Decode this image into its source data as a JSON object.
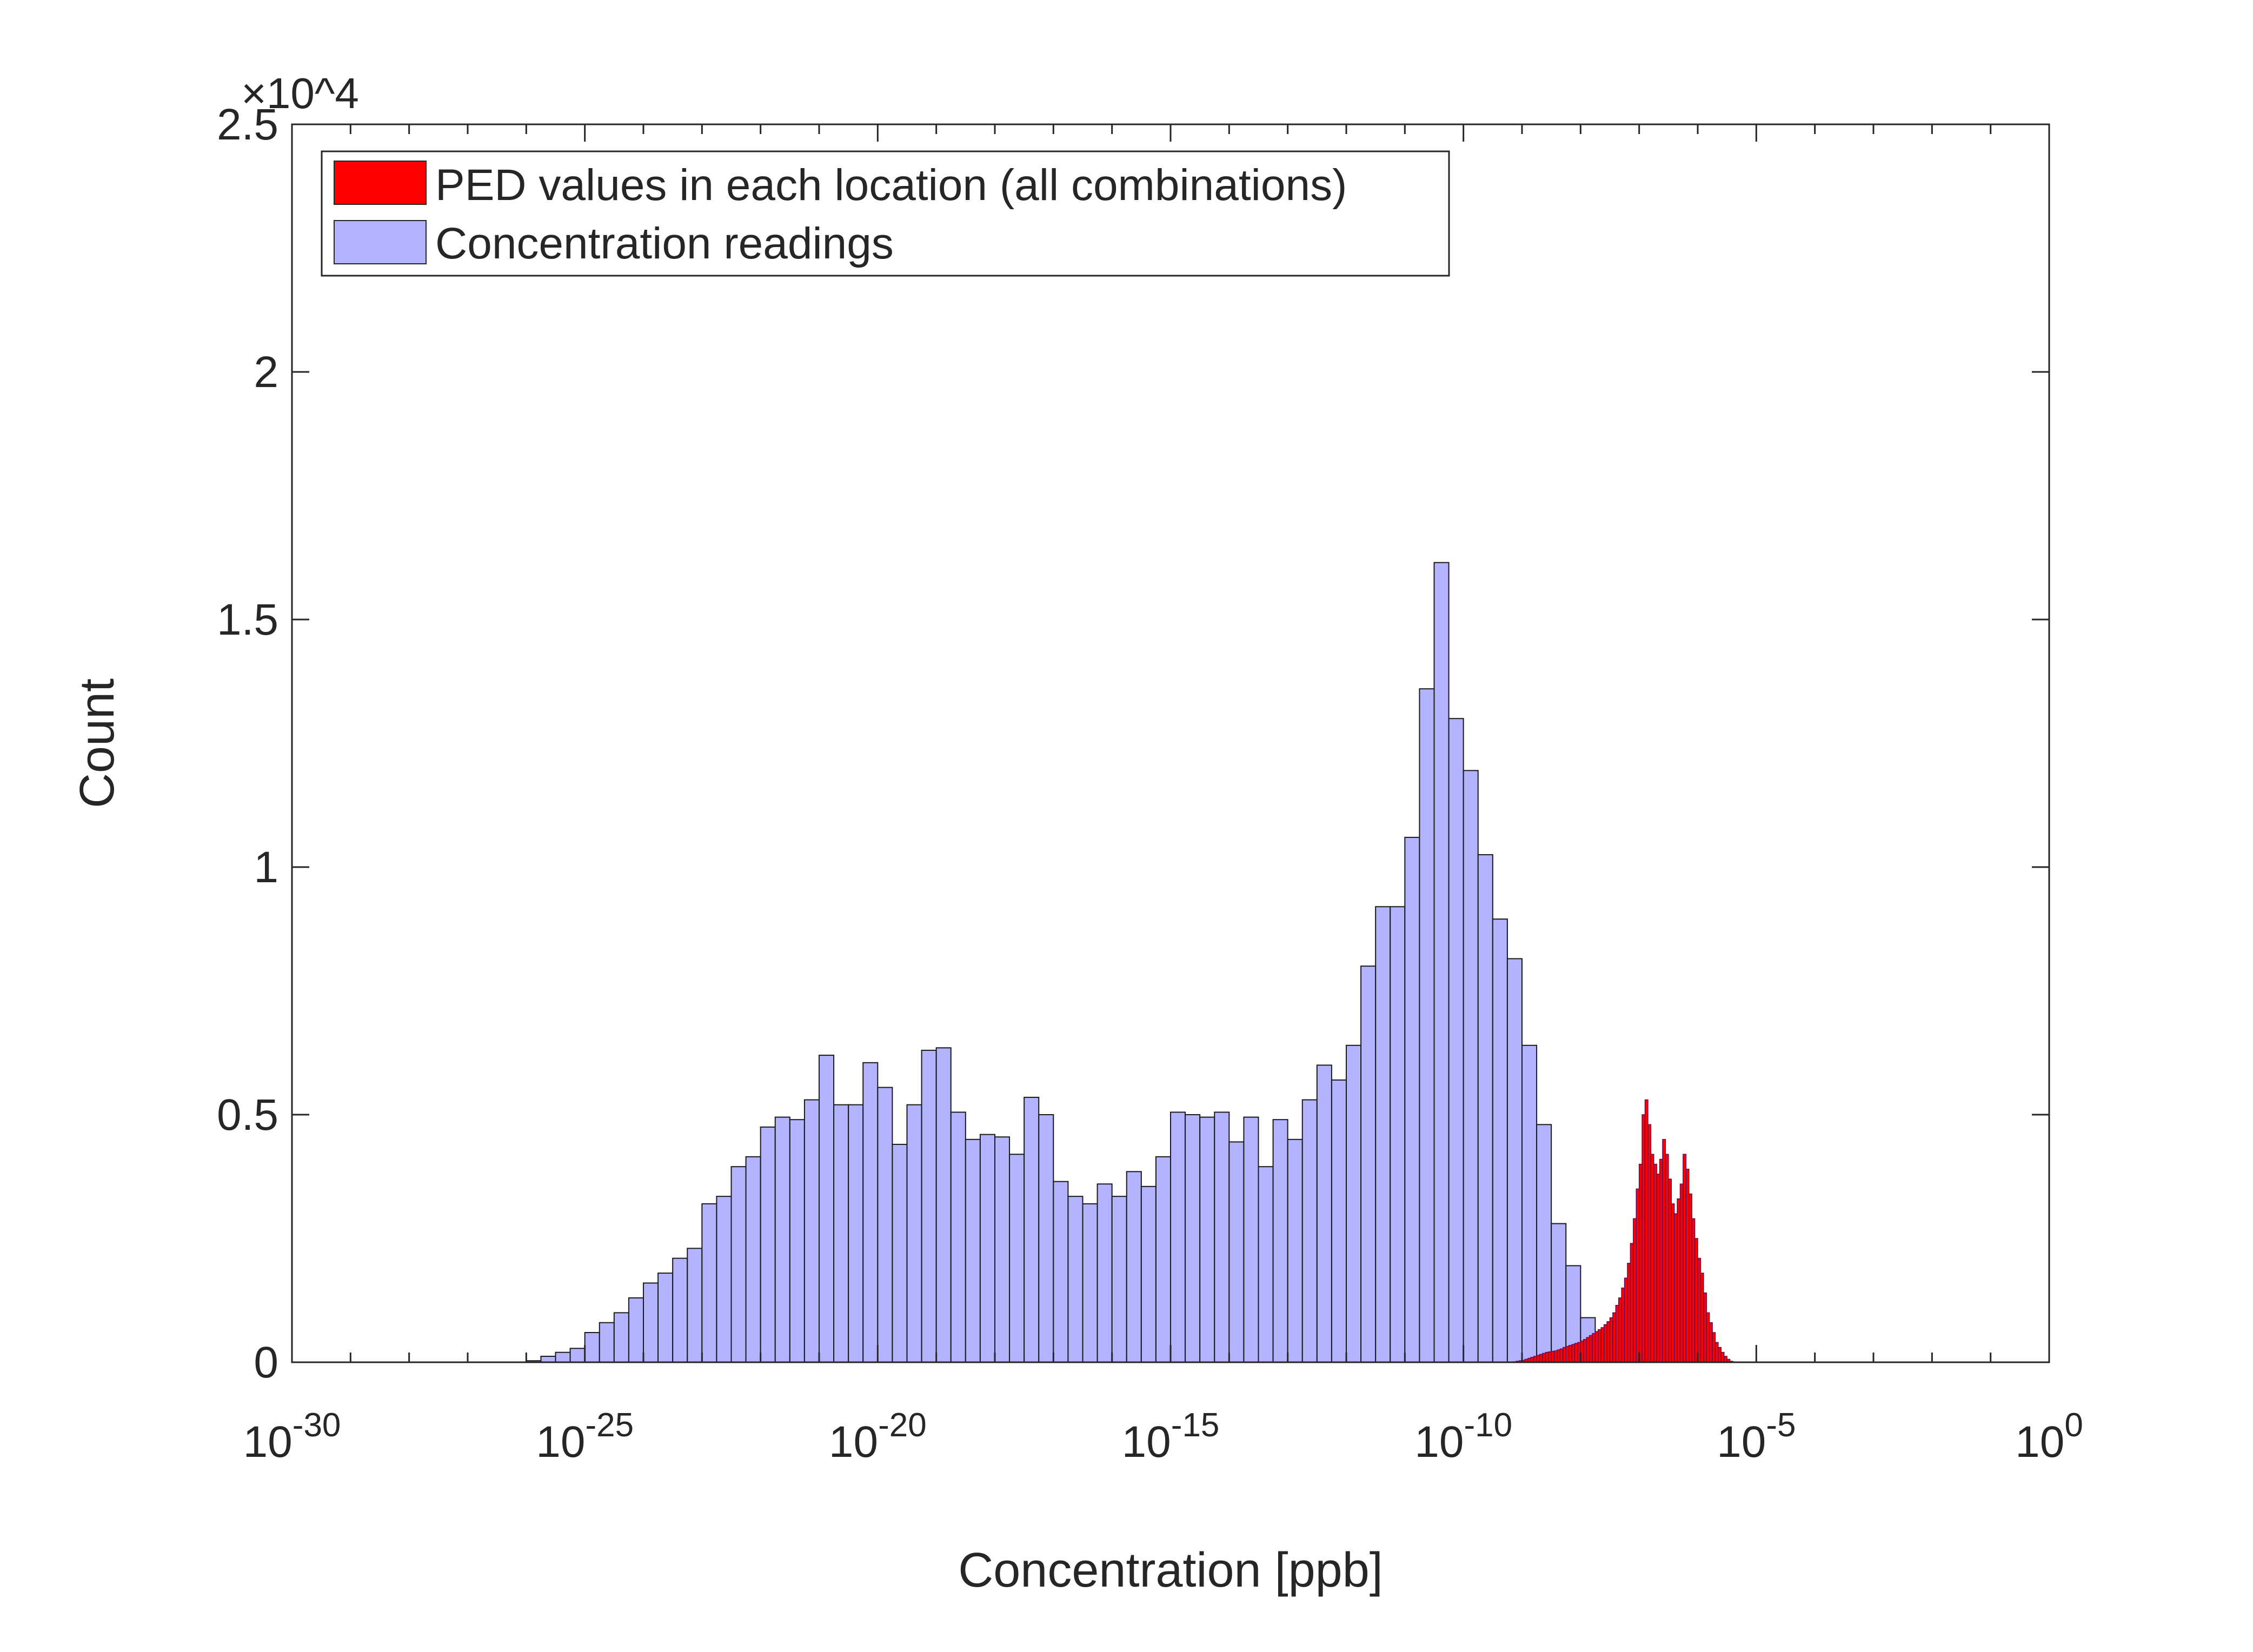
{
  "chart_data": {
    "type": "bar",
    "xscale": "log",
    "xlabel": "Concentration [ppb]",
    "ylabel": "Count",
    "ylim": [
      0,
      25000
    ],
    "xlim": [
      1e-30,
      1
    ],
    "y_multiplier": "×10^4",
    "y_ticks": [
      0,
      0.5,
      1,
      1.5,
      2,
      2.5
    ],
    "x_ticks": [
      {
        "base": "10",
        "exp": "-30"
      },
      {
        "base": "10",
        "exp": "-25"
      },
      {
        "base": "10",
        "exp": "-20"
      },
      {
        "base": "10",
        "exp": "-15"
      },
      {
        "base": "10",
        "exp": "-10"
      },
      {
        "base": "10",
        "exp": "-5"
      },
      {
        "base": "10",
        "exp": "0"
      }
    ],
    "legend_position": "top-left",
    "grid": false,
    "series": [
      {
        "name": "Concentration readings",
        "color": "#b3b3ff",
        "edgecolor": "#1a1a1a",
        "bin_width_log10": 0.25,
        "bin_start_log10": -26,
        "counts": [
          30,
          120,
          200,
          280,
          600,
          800,
          1000,
          1300,
          1600,
          1800,
          2100,
          2300,
          3200,
          3350,
          3950,
          4150,
          4750,
          4950,
          4900,
          5300,
          6200,
          5200,
          5200,
          6050,
          5550,
          4400,
          5200,
          6300,
          6350,
          5050,
          4500,
          4600,
          4550,
          4200,
          5350,
          5000,
          3650,
          3350,
          3200,
          3600,
          3350,
          3850,
          3550,
          4150,
          5050,
          5000,
          4950,
          5050,
          4450,
          4950,
          3950,
          4900,
          4500,
          5300,
          6000,
          5700,
          6400,
          8000,
          9200,
          9200,
          10600,
          13600,
          16150,
          13000,
          11950,
          10250,
          8950,
          8150,
          6400,
          4800,
          2800,
          1950,
          900,
          450,
          100
        ]
      },
      {
        "name": "PED values in each location (all combinations)",
        "color": "#ff0000",
        "edgecolor": "#6a0a50",
        "bin_width_log10": 0.05,
        "bin_start_log10": -9.15,
        "counts": [
          10,
          20,
          30,
          40,
          60,
          80,
          100,
          120,
          140,
          160,
          180,
          200,
          210,
          220,
          230,
          250,
          270,
          300,
          320,
          340,
          360,
          380,
          400,
          430,
          460,
          500,
          540,
          580,
          620,
          660,
          700,
          760,
          820,
          900,
          1000,
          1150,
          1300,
          1500,
          1700,
          2000,
          2400,
          2900,
          3500,
          4000,
          5000,
          5300,
          4800,
          4200,
          4000,
          3800,
          4100,
          4500,
          4200,
          3700,
          3200,
          3000,
          3300,
          3600,
          4200,
          3900,
          3400,
          2900,
          2500,
          2100,
          1800,
          1400,
          1000,
          800,
          600,
          400,
          300,
          200,
          120,
          60,
          20
        ]
      }
    ]
  }
}
